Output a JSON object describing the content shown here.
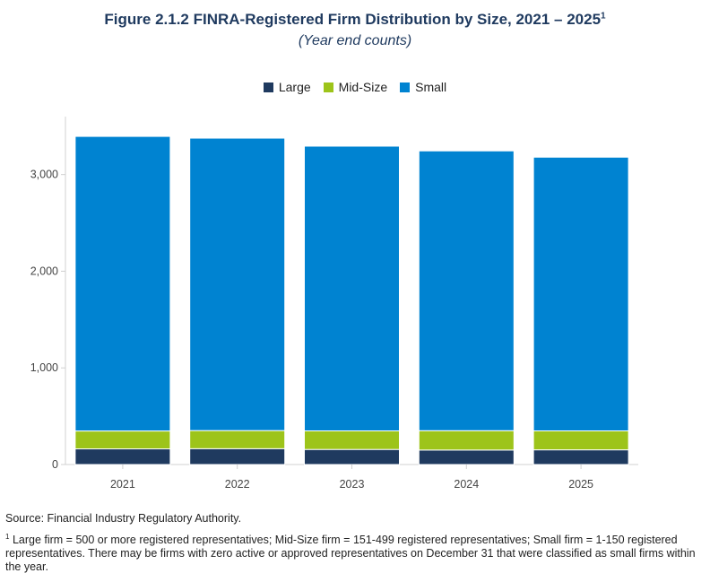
{
  "header": {
    "title": "Figure 2.1.2 FINRA-Registered Firm Distribution by Size, 2021 – 2025",
    "title_sup": "1",
    "subtitle": "(Year end counts)"
  },
  "chart_data": {
    "type": "bar",
    "stacked": true,
    "categories": [
      "2021",
      "2022",
      "2023",
      "2024",
      "2025"
    ],
    "series": [
      {
        "name": "Large",
        "color": "#1f3a5f",
        "values": [
          162,
          164,
          156,
          150,
          152
        ]
      },
      {
        "name": "Mid-Size",
        "color": "#9dc41a",
        "values": [
          185,
          187,
          192,
          200,
          196
        ]
      },
      {
        "name": "Small",
        "color": "#0083d1",
        "values": [
          3048,
          3026,
          2946,
          2895,
          2832
        ]
      }
    ],
    "yticks": [
      0,
      1000,
      2000,
      3000
    ],
    "ytick_labels": [
      "0",
      "1,000",
      "2,000",
      "3,000"
    ],
    "ylim": [
      0,
      3600
    ],
    "legend_position": "top-center",
    "grid": false
  },
  "notes": {
    "source": "Source: Financial Industry Regulatory Authority.",
    "footnote_marker": "1",
    "footnote": "Large firm = 500 or more registered representatives; Mid-Size firm = 151-499 registered representatives; Small firm = 1-150 registered representatives. There may be firms with zero active or approved representatives on December 31 that were classified as small firms within the year."
  }
}
